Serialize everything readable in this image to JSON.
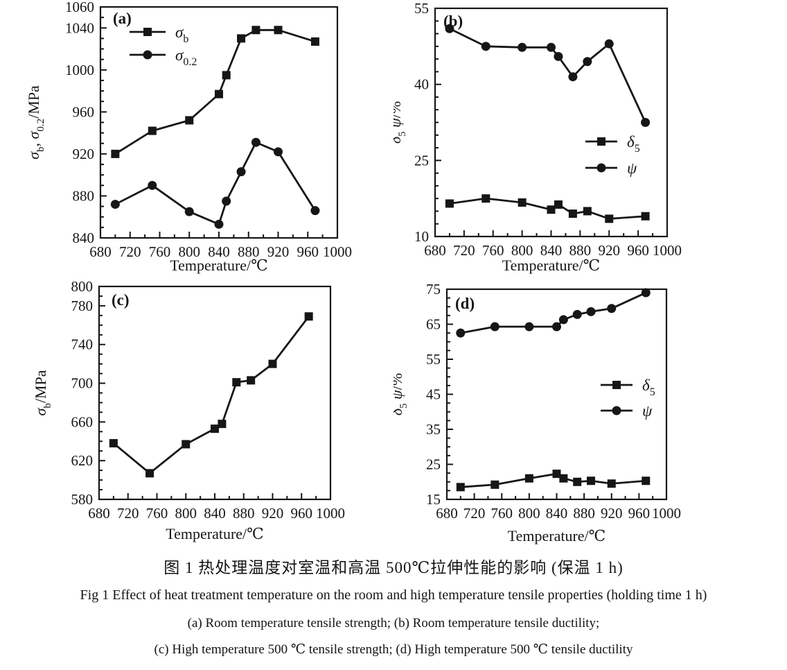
{
  "figure": {
    "caption_zh": "图 1  热处理温度对室温和高温 500℃拉伸性能的影响 (保温 1 h)",
    "caption_en": "Fig 1   Effect of heat treatment temperature on the room and high temperature tensile properties (holding time 1 h)",
    "caption_sub_ab": "(a) Room temperature tensile strength;  (b) Room temperature tensile ductility;",
    "caption_sub_cd": "(c) High temperature 500 ℃ tensile strength;  (d) High temperature 500 ℃ tensile ductility"
  },
  "colors": {
    "ink": "#161616",
    "paper": "#ffffff"
  },
  "chart_data": [
    {
      "id": "a",
      "type": "line",
      "panel_label": "(a)",
      "xlabel": "Temperature/℃",
      "ylabel": "σ_{b}, σ_{0.2}/MPa",
      "xlim": [
        680,
        1000
      ],
      "xticks": [
        680,
        720,
        760,
        800,
        840,
        880,
        920,
        960,
        1000
      ],
      "x_minor_step": 20,
      "ylim": [
        840,
        1060
      ],
      "yticks": [
        840,
        880,
        920,
        960,
        1000,
        1040,
        1060
      ],
      "y_minor_step": 10,
      "grid": false,
      "legend_position": "upper-left",
      "series": [
        {
          "name": "σ_{b}",
          "marker": "square",
          "x": [
            700,
            750,
            800,
            840,
            850,
            870,
            890,
            920,
            970
          ],
          "y": [
            920,
            942,
            952,
            977,
            995,
            1030,
            1038,
            1038,
            1027
          ]
        },
        {
          "name": "σ_{0.2}",
          "marker": "circle",
          "x": [
            700,
            750,
            800,
            840,
            850,
            870,
            890,
            920,
            970
          ],
          "y": [
            872,
            890,
            865,
            853,
            875,
            903,
            931,
            922,
            866
          ]
        }
      ]
    },
    {
      "id": "b",
      "type": "line",
      "panel_label": "(b)",
      "xlabel": "Temperature/℃",
      "ylabel": "δ_{5} ψ/%",
      "xlim": [
        680,
        1000
      ],
      "xticks": [
        680,
        720,
        760,
        800,
        840,
        880,
        920,
        960,
        1000
      ],
      "x_minor_step": 20,
      "ylim": [
        10,
        55
      ],
      "yticks": [
        10,
        25,
        40,
        55
      ],
      "y_minor_step": 2.5,
      "grid": false,
      "legend_position": "middle-right",
      "series": [
        {
          "name": "δ_{5}",
          "marker": "square",
          "x": [
            700,
            750,
            800,
            840,
            850,
            870,
            890,
            920,
            970
          ],
          "y": [
            16.5,
            17.5,
            16.7,
            15.3,
            16.3,
            14.5,
            15,
            13.5,
            14
          ]
        },
        {
          "name": "ψ",
          "marker": "circle",
          "x": [
            700,
            750,
            800,
            840,
            850,
            870,
            890,
            920,
            970
          ],
          "y": [
            51,
            47.5,
            47.3,
            47.3,
            45.5,
            41.5,
            44.5,
            48,
            32.5
          ]
        }
      ]
    },
    {
      "id": "c",
      "type": "line",
      "panel_label": "(c)",
      "xlabel": "Temperature/℃",
      "ylabel": "σ_{b}/MPa",
      "xlim": [
        680,
        1000
      ],
      "xticks": [
        680,
        720,
        760,
        800,
        840,
        880,
        920,
        960,
        1000
      ],
      "x_minor_step": 20,
      "ylim": [
        580,
        800
      ],
      "yticks": [
        580,
        620,
        660,
        700,
        740,
        780,
        800
      ],
      "y_minor_step": 10,
      "grid": false,
      "legend_position": "none",
      "series": [
        {
          "name": "σ_{b}",
          "marker": "square",
          "x": [
            700,
            750,
            800,
            840,
            850,
            870,
            890,
            920,
            970
          ],
          "y": [
            638,
            607,
            637,
            653,
            658,
            701,
            703,
            720,
            769
          ]
        }
      ]
    },
    {
      "id": "d",
      "type": "line",
      "panel_label": "(d)",
      "xlabel": "Temperature/℃",
      "ylabel": "δ_{5} ψ/%",
      "xlim": [
        680,
        1000
      ],
      "xticks": [
        680,
        720,
        760,
        800,
        840,
        880,
        920,
        960,
        1000
      ],
      "x_minor_step": 20,
      "ylim": [
        15,
        75
      ],
      "yticks": [
        15,
        25,
        35,
        45,
        55,
        65,
        75
      ],
      "y_minor_step": 2.5,
      "grid": false,
      "legend_position": "middle-right",
      "series": [
        {
          "name": "δ_{5}",
          "marker": "square",
          "x": [
            700,
            750,
            800,
            840,
            850,
            870,
            890,
            920,
            970
          ],
          "y": [
            18.5,
            19.2,
            21,
            22.3,
            21,
            20,
            20.3,
            19.5,
            20.3
          ]
        },
        {
          "name": "ψ",
          "marker": "circle",
          "x": [
            700,
            750,
            800,
            840,
            850,
            870,
            890,
            920,
            970
          ],
          "y": [
            62.5,
            64.3,
            64.3,
            64.3,
            66.3,
            67.8,
            68.6,
            69.5,
            74
          ]
        }
      ]
    }
  ]
}
